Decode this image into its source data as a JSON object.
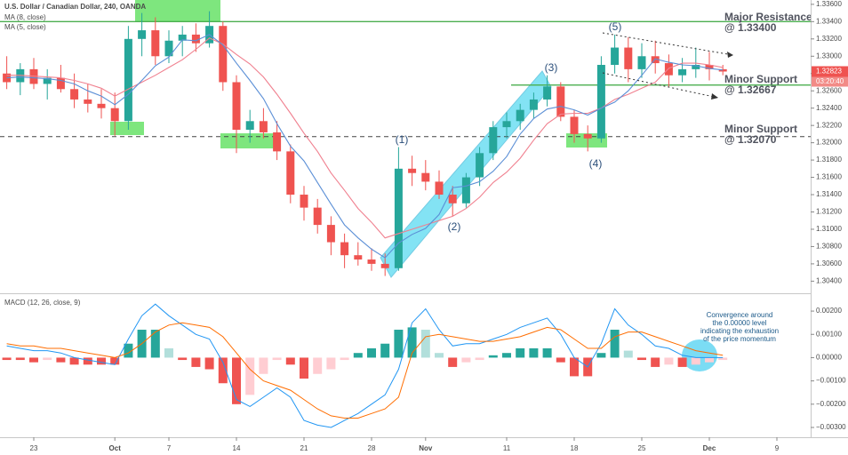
{
  "chart_data": {
    "type": "candlestick",
    "title": "U.S. Dollar / Canadian Dollar, 240, OANDA",
    "categories": [
      null,
      null,
      "23",
      null,
      null,
      null,
      null,
      null,
      "Oct",
      null,
      null,
      null,
      "7",
      null,
      null,
      null,
      null,
      "14",
      null,
      null,
      null,
      null,
      "21",
      null,
      null,
      null,
      null,
      "28",
      null,
      null,
      null,
      "Nov",
      null,
      null,
      null,
      null,
      null,
      "11",
      null,
      null,
      null,
      null,
      "18",
      null,
      null,
      null,
      null,
      "25",
      null,
      null,
      null,
      null,
      "Dec",
      null,
      null,
      null,
      null,
      "9"
    ],
    "open": [
      1.328,
      1.327,
      1.3285,
      1.3268,
      1.3275,
      1.3262,
      1.325,
      1.3245,
      1.324,
      1.3225,
      1.332,
      1.333,
      1.33,
      1.3318,
      1.3325,
      1.3315,
      1.3335,
      1.327,
      1.3215,
      1.3225,
      1.3212,
      1.319,
      1.314,
      1.3125,
      1.3105,
      1.3085,
      1.307,
      1.3065,
      1.306,
      1.3055,
      1.317,
      1.3165,
      1.3155,
      1.314,
      1.313,
      1.316,
      1.3188,
      1.3218,
      1.3225,
      1.3238,
      1.325,
      1.3265,
      1.323,
      1.321,
      1.3205,
      1.329,
      1.331,
      1.3285,
      1.33,
      1.3292,
      1.3278,
      1.3285,
      1.329,
      1.3285,
      null,
      null,
      null,
      null
    ],
    "high": [
      1.33,
      1.3292,
      1.3298,
      1.3285,
      1.329,
      1.328,
      1.3268,
      1.3262,
      1.3258,
      1.3335,
      1.335,
      1.3345,
      1.333,
      1.3335,
      1.3338,
      1.3352,
      1.334,
      1.3278,
      1.3238,
      1.324,
      1.3225,
      1.3198,
      1.315,
      1.3135,
      1.3115,
      1.3095,
      1.3085,
      1.3078,
      1.3072,
      1.3195,
      1.3185,
      1.318,
      1.3168,
      1.315,
      1.3165,
      1.3195,
      1.3225,
      1.3235,
      1.3245,
      1.3258,
      1.3278,
      1.327,
      1.3238,
      1.322,
      1.33,
      1.3325,
      1.3322,
      1.3315,
      1.3318,
      1.3302,
      1.3298,
      1.331,
      1.3305,
      1.329,
      null,
      null,
      null,
      null
    ],
    "low": [
      1.3262,
      1.3255,
      1.3262,
      1.325,
      1.3258,
      1.324,
      1.3235,
      1.3228,
      1.3208,
      1.3215,
      1.33,
      1.329,
      1.3292,
      1.33,
      1.3305,
      1.331,
      1.326,
      1.3188,
      1.32,
      1.3205,
      1.318,
      1.313,
      1.311,
      1.3095,
      1.307,
      1.3055,
      1.3058,
      1.3052,
      1.3046,
      1.3052,
      1.315,
      1.3145,
      1.3135,
      1.3115,
      1.3125,
      1.315,
      1.318,
      1.3205,
      1.3215,
      1.3228,
      1.3242,
      1.3225,
      1.32,
      1.319,
      1.32,
      1.328,
      1.327,
      1.3275,
      1.328,
      1.3265,
      1.327,
      1.3275,
      1.3272,
      1.3278,
      null,
      null,
      null,
      null
    ],
    "close": [
      1.327,
      1.3285,
      1.3268,
      1.3275,
      1.3262,
      1.325,
      1.3245,
      1.324,
      1.3225,
      1.332,
      1.333,
      1.33,
      1.3318,
      1.3325,
      1.3315,
      1.3335,
      1.327,
      1.3215,
      1.3225,
      1.3212,
      1.319,
      1.314,
      1.3125,
      1.3105,
      1.3085,
      1.307,
      1.3065,
      1.306,
      1.3055,
      1.317,
      1.3165,
      1.3155,
      1.314,
      1.313,
      1.316,
      1.3188,
      1.3218,
      1.3225,
      1.3238,
      1.325,
      1.3265,
      1.323,
      1.321,
      1.3205,
      1.329,
      1.331,
      1.3285,
      1.33,
      1.3292,
      1.3278,
      1.3285,
      1.329,
      1.3285,
      1.32823,
      null,
      null,
      null,
      null
    ],
    "up_color": "#26a69a",
    "down_color": "#ef5350",
    "countdown": "03:20:40",
    "ylim": [
      1.3026,
      1.3365
    ],
    "yticks": [
      {
        "value": 1.304,
        "label": "1.30400"
      },
      {
        "value": 1.306,
        "label": "1.30600"
      },
      {
        "value": 1.308,
        "label": "1.30800"
      },
      {
        "value": 1.31,
        "label": "1.31000"
      },
      {
        "value": 1.312,
        "label": "1.31200"
      },
      {
        "value": 1.314,
        "label": "1.31400"
      },
      {
        "value": 1.316,
        "label": "1.31600"
      },
      {
        "value": 1.318,
        "label": "1.31800"
      },
      {
        "value": 1.32,
        "label": "1.32000"
      },
      {
        "value": 1.322,
        "label": "1.32200"
      },
      {
        "value": 1.324,
        "label": "1.32400"
      },
      {
        "value": 1.326,
        "label": "1.32600"
      },
      {
        "value": 1.328,
        "label": "1.32800"
      },
      {
        "value": 1.33,
        "label": "1.33000"
      },
      {
        "value": 1.332,
        "label": "1.33200"
      },
      {
        "value": 1.334,
        "label": "1.33400"
      },
      {
        "value": 1.336,
        "label": "1.33600"
      }
    ],
    "grid": false,
    "indicators": [
      {
        "name": "MA (8, close)",
        "color": "#f0808f",
        "values": [
          1.3278,
          1.3278,
          1.3277,
          1.3276,
          1.3275,
          1.3272,
          1.3268,
          1.3263,
          1.3254,
          1.3262,
          1.327,
          1.3278,
          1.3287,
          1.3296,
          1.3308,
          1.3321,
          1.3314,
          1.3302,
          1.3291,
          1.3276,
          1.3256,
          1.3234,
          1.3211,
          1.319,
          1.3165,
          1.3145,
          1.3124,
          1.3108,
          1.309,
          1.3095,
          1.31,
          1.3105,
          1.311,
          1.3115,
          1.3124,
          1.3137,
          1.3154,
          1.3166,
          1.3182,
          1.3203,
          1.3222,
          1.3233,
          1.3234,
          1.3234,
          1.324,
          1.325,
          1.3256,
          1.3263,
          1.327,
          1.3286,
          1.3292,
          1.3292,
          1.329,
          1.3287,
          null,
          null,
          null,
          null
        ]
      },
      {
        "name": "MA (5, close)",
        "color": "#5b8fd6",
        "values": [
          1.3275,
          1.3276,
          1.3275,
          1.3274,
          1.3272,
          1.3268,
          1.326,
          1.3254,
          1.3244,
          1.3256,
          1.3272,
          1.3289,
          1.3299,
          1.3319,
          1.3318,
          1.3325,
          1.3313,
          1.3292,
          1.3272,
          1.3251,
          1.3222,
          1.3196,
          1.3179,
          1.3154,
          1.3129,
          1.3105,
          1.309,
          1.3077,
          1.3067,
          1.3084,
          1.3094,
          1.3101,
          1.3117,
          1.3148,
          1.315,
          1.3155,
          1.3167,
          1.3184,
          1.321,
          1.3228,
          1.3239,
          1.3242,
          1.3238,
          1.3232,
          1.324,
          1.3247,
          1.326,
          1.3278,
          1.3297,
          1.3293,
          1.329,
          1.3289,
          1.3286,
          1.3284,
          null,
          null,
          null,
          null
        ]
      }
    ],
    "levels": [
      {
        "name": "Major Resistance",
        "value": 1.334,
        "label": "@ 1.33400",
        "color": "#4caf50",
        "dashed": false
      },
      {
        "name": "Minor Support",
        "value": 1.32667,
        "label": "@ 1.32667",
        "color": "#4caf50",
        "dashed": false
      },
      {
        "name": "Minor Support",
        "value": 1.3207,
        "label": "@ 1.32070",
        "color": "#444444",
        "dashed": true
      }
    ],
    "waves": [
      "(1)",
      "(2)",
      "(3)",
      "(4)",
      "(5)"
    ],
    "macd": {
      "title": "MACD (12, 26, close, 9)",
      "ylim": [
        -0.00342,
        0.00269
      ],
      "yticks": [
        {
          "value": 0.002,
          "label": "0.00200"
        },
        {
          "value": 0.001,
          "label": "0.00100"
        },
        {
          "value": 0,
          "label": "0.00000"
        },
        {
          "value": -0.001,
          "label": "−0.00100"
        },
        {
          "value": -0.002,
          "label": "−0.00200"
        },
        {
          "value": -0.003,
          "label": "−0.00300"
        }
      ],
      "macd_color": "#2196f3",
      "signal_color": "#ff6d00",
      "hist_colors": {
        "pos_up": "#26a69a",
        "pos_down": "#b2dfdb",
        "neg_down": "#ef5350",
        "neg_up": "#ffcdd2"
      },
      "macd": [
        0.0005,
        0.0004,
        0.0003,
        0.0003,
        0.0002,
        0.0,
        -0.0001,
        -0.0002,
        -0.0003,
        0.0008,
        0.0018,
        0.0023,
        0.0018,
        0.0014,
        0.001,
        0.0008,
        -0.0002,
        -0.0018,
        -0.0021,
        -0.0017,
        -0.0013,
        -0.0017,
        -0.0027,
        -0.0029,
        -0.003,
        -0.0027,
        -0.0024,
        -0.002,
        -0.0016,
        -0.0005,
        0.0015,
        0.0021,
        0.0012,
        0.0005,
        0.0006,
        0.0006,
        0.0008,
        0.001,
        0.0013,
        0.0015,
        0.0017,
        0.001,
        0.0,
        -0.0004,
        0.0006,
        0.0021,
        0.0014,
        0.001,
        0.0005,
        0.0004,
        0.0001,
        0.0,
        0.0,
        0.0,
        null,
        null,
        null,
        null
      ],
      "signal": [
        0.0006,
        0.0005,
        0.0005,
        0.0004,
        0.0004,
        0.0003,
        0.0002,
        0.0001,
        0.0,
        0.0002,
        0.0006,
        0.0011,
        0.0014,
        0.0015,
        0.0014,
        0.0013,
        0.0009,
        0.0002,
        -0.0005,
        -0.001,
        -0.0012,
        -0.0014,
        -0.0018,
        -0.0022,
        -0.0025,
        -0.0026,
        -0.0026,
        -0.0024,
        -0.0022,
        -0.0017,
        0.0002,
        0.0009,
        0.001,
        0.0009,
        0.0008,
        0.0007,
        0.0007,
        0.0008,
        0.0009,
        0.0011,
        0.0013,
        0.0012,
        0.0008,
        0.0004,
        0.0004,
        0.0009,
        0.0011,
        0.0011,
        0.0009,
        0.0007,
        0.0005,
        0.0003,
        0.0002,
        0.0001,
        null,
        null,
        null,
        null
      ],
      "histogram": [
        -0.0001,
        -0.0001,
        -0.0002,
        -0.0001,
        -0.0002,
        -0.0003,
        -0.0003,
        -0.0003,
        -0.0003,
        0.0006,
        0.0012,
        0.0012,
        0.0004,
        -0.0001,
        -0.0004,
        -0.0005,
        -0.0011,
        -0.002,
        -0.0016,
        -0.0007,
        -0.0001,
        -0.0003,
        -0.0009,
        -0.0007,
        -0.0005,
        -0.0001,
        0.0002,
        0.0004,
        0.0006,
        0.0012,
        0.0013,
        0.0012,
        0.0002,
        -0.0004,
        -0.0002,
        -0.0001,
        0.0001,
        0.0002,
        0.0004,
        0.0004,
        0.0004,
        -0.0002,
        -0.0008,
        -0.0008,
        0.0002,
        0.0012,
        0.0003,
        -0.0001,
        -0.0004,
        -0.0003,
        -0.0004,
        -0.0003,
        -0.0002,
        -0.0001,
        null,
        null,
        null,
        null
      ],
      "note": [
        "Convergence around",
        "the 0.00000 level",
        "indicating the exhaustion",
        "of the price momentum"
      ]
    }
  }
}
